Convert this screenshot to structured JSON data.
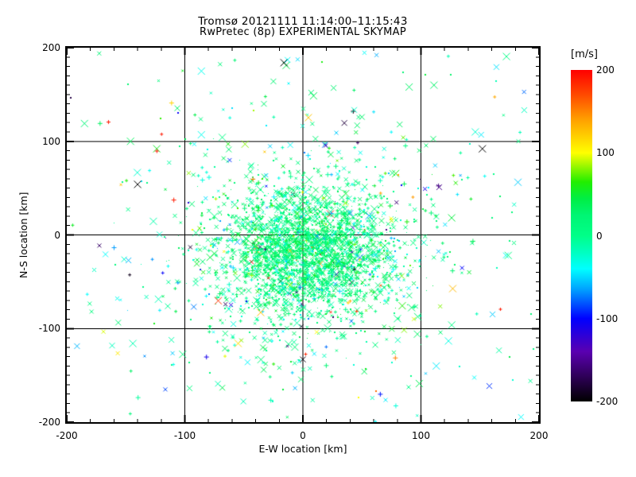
{
  "title": {
    "line1": "Tromsø 20121111 11:14:00–11:15:43",
    "line2": "RwPretec (8p) EXPERIMENTAL SKYMAP"
  },
  "axes": {
    "xlabel": "E-W location [km]",
    "ylabel": "N-S location [km]"
  },
  "colorbar": {
    "label": "[m/s]",
    "min": -200,
    "max": 200,
    "ticks": [
      200,
      100,
      0,
      -100,
      -200
    ]
  },
  "colors": {
    "background": "#ffffff",
    "frame": "#000000",
    "text": "#000000"
  },
  "chart_data": {
    "type": "scatter",
    "title": "Tromsø 20121111 11:14:00–11:15:43 / RwPretec (8p) EXPERIMENTAL SKYMAP",
    "xlabel": "E-W location [km]",
    "ylabel": "N-S location [km]",
    "value_label": "[m/s]",
    "xlim": [
      -200,
      200
    ],
    "ylim": [
      -200,
      200
    ],
    "vlim": [
      -200,
      200
    ],
    "x_major_ticks": [
      -200,
      -100,
      0,
      100,
      200
    ],
    "y_major_ticks": [
      -200,
      -100,
      0,
      100,
      200
    ],
    "x_minor_step": 20,
    "y_minor_step": 10,
    "grid_values": [
      -100,
      0,
      100
    ],
    "grid_on": true,
    "legend_position": "colorbar-right",
    "colormap_stops": [
      [
        -200,
        "#000000"
      ],
      [
        -170,
        "#2E0057"
      ],
      [
        -140,
        "#5A00B0"
      ],
      [
        -100,
        "#0000FF"
      ],
      [
        -65,
        "#00A0FF"
      ],
      [
        -40,
        "#00FFFF"
      ],
      [
        -20,
        "#00FFC0"
      ],
      [
        0,
        "#00FF88"
      ],
      [
        25,
        "#00F573"
      ],
      [
        45,
        "#00EE44"
      ],
      [
        65,
        "#22EE00"
      ],
      [
        100,
        "#FFFF00"
      ],
      [
        140,
        "#FFA000"
      ],
      [
        170,
        "#FF4A00"
      ],
      [
        200,
        "#FF0000"
      ]
    ],
    "seed": 20121111,
    "clusters": [
      {
        "name": "dense-core",
        "count": 2300,
        "cx": 3,
        "cy": -20,
        "sigma_x": 36,
        "sigma_y": 34,
        "velocity_mix": [
          {
            "w": 0.7,
            "mean": 15,
            "sigma": 14
          },
          {
            "w": 0.2,
            "mean": 42,
            "sigma": 14
          },
          {
            "w": 0.07,
            "mean": -35,
            "sigma": 18
          },
          {
            "w": 0.03,
            "uniform": [
              -200,
              200
            ]
          }
        ],
        "marker_mix": [
          [
            "dot",
            1,
            0.16
          ],
          [
            "dot",
            2,
            0.16
          ],
          [
            "x",
            3,
            0.2
          ],
          [
            "plus",
            3,
            0.12
          ],
          [
            "x",
            5,
            0.2
          ],
          [
            "plus",
            5,
            0.05
          ],
          [
            "x",
            7,
            0.08
          ],
          [
            "x",
            9,
            0.03
          ]
        ]
      },
      {
        "name": "halo",
        "count": 620,
        "cx": 0,
        "cy": -12,
        "sigma_x": 62,
        "sigma_y": 58,
        "velocity_mix": [
          {
            "w": 0.5,
            "mean": 8,
            "sigma": 18
          },
          {
            "w": 0.3,
            "mean": -28,
            "sigma": 22
          },
          {
            "w": 0.15,
            "mean": 45,
            "sigma": 18
          },
          {
            "w": 0.05,
            "uniform": [
              -200,
              200
            ]
          }
        ],
        "marker_mix": [
          [
            "dot",
            1,
            0.14
          ],
          [
            "dot",
            2,
            0.16
          ],
          [
            "x",
            3,
            0.2
          ],
          [
            "plus",
            3,
            0.14
          ],
          [
            "x",
            5,
            0.2
          ],
          [
            "plus",
            5,
            0.06
          ],
          [
            "x",
            7,
            0.07
          ],
          [
            "x",
            9,
            0.03
          ]
        ]
      },
      {
        "name": "outer-halo",
        "count": 200,
        "cx": 0,
        "cy": -5,
        "sigma_x": 105,
        "sigma_y": 100,
        "velocity_mix": [
          {
            "w": 0.45,
            "mean": 5,
            "sigma": 25
          },
          {
            "w": 0.3,
            "mean": -35,
            "sigma": 25
          },
          {
            "w": 0.15,
            "mean": 50,
            "sigma": 25
          },
          {
            "w": 0.1,
            "uniform": [
              -200,
              200
            ]
          }
        ],
        "marker_mix": [
          [
            "dot",
            2,
            0.2
          ],
          [
            "x",
            3,
            0.2
          ],
          [
            "plus",
            3,
            0.18
          ],
          [
            "x",
            5,
            0.25
          ],
          [
            "plus",
            5,
            0.07
          ],
          [
            "x",
            7,
            0.07
          ],
          [
            "x",
            9,
            0.03
          ]
        ]
      },
      {
        "name": "background",
        "count": 115,
        "uniform_area": [
          -198,
          198,
          -198,
          198
        ],
        "velocity_mix": [
          {
            "w": 0.4,
            "mean": 0,
            "sigma": 45
          },
          {
            "w": 0.25,
            "mean": -50,
            "sigma": 40
          },
          {
            "w": 0.2,
            "mean": 60,
            "sigma": 45
          },
          {
            "w": 0.15,
            "uniform": [
              -200,
              200
            ]
          }
        ],
        "marker_mix": [
          [
            "dot",
            2,
            0.2
          ],
          [
            "plus",
            3,
            0.15
          ],
          [
            "x",
            5,
            0.3
          ],
          [
            "plus",
            5,
            0.1
          ],
          [
            "x",
            7,
            0.15
          ],
          [
            "x",
            9,
            0.1
          ]
        ]
      }
    ],
    "notable_points": [
      {
        "x": -16,
        "y": 184,
        "v": -200,
        "marker": "x",
        "size": 9
      },
      {
        "x": -13,
        "y": 187,
        "v": -40,
        "marker": "x",
        "size": 7
      },
      {
        "x": 152,
        "y": 92,
        "v": -200,
        "marker": "x",
        "size": 9
      },
      {
        "x": 146,
        "y": 110,
        "v": -25,
        "marker": "x",
        "size": 9
      },
      {
        "x": 151,
        "y": 107,
        "v": -45,
        "marker": "x",
        "size": 7
      },
      {
        "x": -140,
        "y": 54,
        "v": -200,
        "marker": "x",
        "size": 9
      },
      {
        "x": -185,
        "y": 119,
        "v": 20,
        "marker": "x",
        "size": 9
      },
      {
        "x": -165,
        "y": 121,
        "v": 190,
        "marker": "plus",
        "size": 4
      },
      {
        "x": -120,
        "y": 108,
        "v": 190,
        "marker": "plus",
        "size": 3
      },
      {
        "x": -124,
        "y": 90,
        "v": 190,
        "marker": "plus",
        "size": 4
      },
      {
        "x": -146,
        "y": 100,
        "v": 35,
        "marker": "x",
        "size": 9
      },
      {
        "x": -86,
        "y": 175,
        "v": -35,
        "marker": "x",
        "size": 9
      },
      {
        "x": -86,
        "y": 107,
        "v": -35,
        "marker": "x",
        "size": 9
      },
      {
        "x": -92,
        "y": 97,
        "v": -40,
        "marker": "x",
        "size": 5
      },
      {
        "x": 113,
        "y": -140,
        "v": -45,
        "marker": "x",
        "size": 9
      },
      {
        "x": 78,
        "y": -131,
        "v": 150,
        "marker": "plus",
        "size": 5
      },
      {
        "x": -144,
        "y": -116,
        "v": -15,
        "marker": "x",
        "size": 9
      },
      {
        "x": -82,
        "y": -130,
        "v": -110,
        "marker": "plus",
        "size": 5
      },
      {
        "x": 61,
        "y": -199,
        "v": -40,
        "marker": "plus",
        "size": 3
      },
      {
        "x": 47,
        "y": -174,
        "v": 100,
        "marker": "dot",
        "size": 2
      },
      {
        "x": 97,
        "y": -106,
        "v": 30,
        "marker": "x",
        "size": 9
      },
      {
        "x": -49,
        "y": 97,
        "v": 80,
        "marker": "x",
        "size": 9
      },
      {
        "x": 85,
        "y": 174,
        "v": 25,
        "marker": "dot",
        "size": 2
      },
      {
        "x": 90,
        "y": 158,
        "v": 30,
        "marker": "x",
        "size": 9
      },
      {
        "x": 111,
        "y": 160,
        "v": 30,
        "marker": "x",
        "size": 9
      },
      {
        "x": 0,
        "y": -133,
        "v": -195,
        "marker": "x",
        "size": 7
      },
      {
        "x": 2,
        "y": -127,
        "v": 185,
        "marker": "plus",
        "size": 3
      },
      {
        "x": 82,
        "y": 118,
        "v": 30,
        "marker": "x",
        "size": 7
      },
      {
        "x": 85,
        "y": 104,
        "v": 75,
        "marker": "x",
        "size": 5
      },
      {
        "x": -58,
        "y": 187,
        "v": 25,
        "marker": "plus",
        "size": 3
      },
      {
        "x": -25,
        "y": 164,
        "v": 25,
        "marker": "x",
        "size": 7
      },
      {
        "x": -33,
        "y": 140,
        "v": 25,
        "marker": "x",
        "size": 7
      },
      {
        "x": 7,
        "y": 152,
        "v": 25,
        "marker": "x",
        "size": 7
      },
      {
        "x": 26,
        "y": 157,
        "v": 25,
        "marker": "x",
        "size": 7
      },
      {
        "x": 43,
        "y": 155,
        "v": 30,
        "marker": "plus",
        "size": 3
      },
      {
        "x": 50,
        "y": 126,
        "v": 28,
        "marker": "x",
        "size": 7
      },
      {
        "x": 46,
        "y": 117,
        "v": 28,
        "marker": "x",
        "size": 7
      },
      {
        "x": -72,
        "y": -159,
        "v": -15,
        "marker": "x",
        "size": 7
      },
      {
        "x": -110,
        "y": -138,
        "v": -35,
        "marker": "plus",
        "size": 3
      },
      {
        "x": -146,
        "y": -145,
        "v": 30,
        "marker": "plus",
        "size": 3
      },
      {
        "x": 52,
        "y": -146,
        "v": 35,
        "marker": "x",
        "size": 7
      },
      {
        "x": 167,
        "y": -79,
        "v": 190,
        "marker": "plus",
        "size": 3
      },
      {
        "x": -183,
        "y": -63,
        "v": -40,
        "marker": "plus",
        "size": 3
      }
    ]
  }
}
